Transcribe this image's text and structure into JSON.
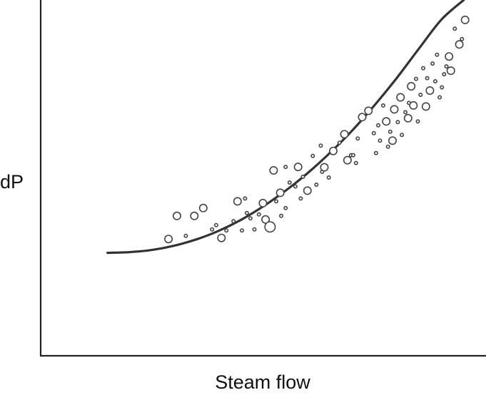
{
  "chart_data": {
    "type": "scatter",
    "xlabel": "Steam flow",
    "ylabel": "dP",
    "ticks": "none",
    "grid": false,
    "legend": "none",
    "xlim": [
      0,
      100
    ],
    "ylim": [
      0,
      100
    ],
    "fit_curve": {
      "shape": "quadratic",
      "x": [
        15,
        20,
        25,
        30,
        35,
        40,
        45,
        50,
        55,
        60,
        65,
        70,
        75,
        80,
        85,
        90,
        95
      ],
      "y": [
        28.8,
        29.0,
        29.6,
        30.8,
        32.6,
        35.0,
        38.1,
        41.9,
        46.3,
        51.3,
        57.0,
        63.3,
        70.4,
        78.1,
        86.4,
        94.5,
        100
      ]
    },
    "points": [
      {
        "x": 28.7,
        "y": 32.7,
        "size": "medium"
      },
      {
        "x": 30.6,
        "y": 39.2,
        "size": "medium"
      },
      {
        "x": 32.6,
        "y": 33.6,
        "size": "small"
      },
      {
        "x": 34.5,
        "y": 39.2,
        "size": "medium"
      },
      {
        "x": 36.5,
        "y": 41.4,
        "size": "medium"
      },
      {
        "x": 38.5,
        "y": 35.4,
        "size": "small"
      },
      {
        "x": 39.4,
        "y": 36.6,
        "size": "small"
      },
      {
        "x": 40.6,
        "y": 33.0,
        "size": "medium"
      },
      {
        "x": 41.7,
        "y": 35.1,
        "size": "small"
      },
      {
        "x": 43.3,
        "y": 37.7,
        "size": "small"
      },
      {
        "x": 44.2,
        "y": 43.3,
        "size": "medium"
      },
      {
        "x": 45.2,
        "y": 35.1,
        "size": "small"
      },
      {
        "x": 45.9,
        "y": 44.1,
        "size": "small"
      },
      {
        "x": 46.3,
        "y": 40.0,
        "size": "small"
      },
      {
        "x": 47.1,
        "y": 38.5,
        "size": "small"
      },
      {
        "x": 48.0,
        "y": 35.4,
        "size": "small"
      },
      {
        "x": 49.0,
        "y": 39.6,
        "size": "small"
      },
      {
        "x": 49.9,
        "y": 42.8,
        "size": "medium"
      },
      {
        "x": 50.5,
        "y": 38.2,
        "size": "medium"
      },
      {
        "x": 51.5,
        "y": 36.1,
        "size": "large"
      },
      {
        "x": 52.3,
        "y": 52.0,
        "size": "medium"
      },
      {
        "x": 52.9,
        "y": 43.3,
        "size": "small"
      },
      {
        "x": 53.8,
        "y": 45.7,
        "size": "medium"
      },
      {
        "x": 54.0,
        "y": 39.2,
        "size": "small"
      },
      {
        "x": 55.0,
        "y": 53.0,
        "size": "small"
      },
      {
        "x": 55.0,
        "y": 41.4,
        "size": "small"
      },
      {
        "x": 55.9,
        "y": 48.6,
        "size": "small"
      },
      {
        "x": 57.2,
        "y": 47.5,
        "size": "small"
      },
      {
        "x": 57.8,
        "y": 53.0,
        "size": "medium"
      },
      {
        "x": 58.4,
        "y": 44.1,
        "size": "small"
      },
      {
        "x": 58.9,
        "y": 50.2,
        "size": "small"
      },
      {
        "x": 59.9,
        "y": 46.3,
        "size": "medium"
      },
      {
        "x": 61.1,
        "y": 56.1,
        "size": "small"
      },
      {
        "x": 61.9,
        "y": 48.0,
        "size": "small"
      },
      {
        "x": 62.9,
        "y": 59.0,
        "size": "small"
      },
      {
        "x": 63.2,
        "y": 51.6,
        "size": "small"
      },
      {
        "x": 63.7,
        "y": 52.9,
        "size": "medium"
      },
      {
        "x": 64.7,
        "y": 50.0,
        "size": "small"
      },
      {
        "x": 65.7,
        "y": 57.5,
        "size": "medium"
      },
      {
        "x": 67.1,
        "y": 59.8,
        "size": "small"
      },
      {
        "x": 68.2,
        "y": 62.2,
        "size": "medium"
      },
      {
        "x": 68.9,
        "y": 54.9,
        "size": "medium"
      },
      {
        "x": 69.7,
        "y": 56.3,
        "size": "small"
      },
      {
        "x": 70.2,
        "y": 56.3,
        "size": "small"
      },
      {
        "x": 70.8,
        "y": 54.1,
        "size": "small"
      },
      {
        "x": 71.2,
        "y": 61.0,
        "size": "small"
      },
      {
        "x": 72.2,
        "y": 67.0,
        "size": "medium"
      },
      {
        "x": 73.6,
        "y": 68.8,
        "size": "medium"
      },
      {
        "x": 74.8,
        "y": 62.5,
        "size": "small"
      },
      {
        "x": 75.3,
        "y": 56.9,
        "size": "small"
      },
      {
        "x": 75.8,
        "y": 64.7,
        "size": "small"
      },
      {
        "x": 76.2,
        "y": 60.4,
        "size": "small"
      },
      {
        "x": 76.9,
        "y": 70.3,
        "size": "small"
      },
      {
        "x": 77.6,
        "y": 65.8,
        "size": "medium"
      },
      {
        "x": 78.0,
        "y": 58.7,
        "size": "small"
      },
      {
        "x": 78.5,
        "y": 62.9,
        "size": "small"
      },
      {
        "x": 79.0,
        "y": 60.4,
        "size": "medium"
      },
      {
        "x": 79.4,
        "y": 69.2,
        "size": "medium"
      },
      {
        "x": 80.2,
        "y": 65.6,
        "size": "small"
      },
      {
        "x": 80.8,
        "y": 72.6,
        "size": "medium"
      },
      {
        "x": 81.1,
        "y": 62.0,
        "size": "small"
      },
      {
        "x": 81.9,
        "y": 68.4,
        "size": "small"
      },
      {
        "x": 82.5,
        "y": 66.7,
        "size": "medium"
      },
      {
        "x": 82.7,
        "y": 71.0,
        "size": "small"
      },
      {
        "x": 83.2,
        "y": 75.7,
        "size": "medium"
      },
      {
        "x": 83.7,
        "y": 70.3,
        "size": "medium"
      },
      {
        "x": 84.3,
        "y": 77.8,
        "size": "small"
      },
      {
        "x": 84.7,
        "y": 65.8,
        "size": "small"
      },
      {
        "x": 85.3,
        "y": 73.3,
        "size": "small"
      },
      {
        "x": 85.9,
        "y": 80.8,
        "size": "small"
      },
      {
        "x": 86.5,
        "y": 70.0,
        "size": "medium"
      },
      {
        "x": 86.8,
        "y": 78.0,
        "size": "small"
      },
      {
        "x": 87.4,
        "y": 74.5,
        "size": "medium"
      },
      {
        "x": 88.0,
        "y": 82.1,
        "size": "small"
      },
      {
        "x": 88.6,
        "y": 77.1,
        "size": "small"
      },
      {
        "x": 89.0,
        "y": 84.6,
        "size": "small"
      },
      {
        "x": 89.6,
        "y": 72.6,
        "size": "small"
      },
      {
        "x": 90.1,
        "y": 75.4,
        "size": "small"
      },
      {
        "x": 90.6,
        "y": 79.1,
        "size": "small"
      },
      {
        "x": 91.1,
        "y": 81.3,
        "size": "small"
      },
      {
        "x": 91.7,
        "y": 84.1,
        "size": "medium"
      },
      {
        "x": 92.1,
        "y": 80.1,
        "size": "medium"
      },
      {
        "x": 93.0,
        "y": 91.9,
        "size": "small"
      },
      {
        "x": 94.0,
        "y": 87.5,
        "size": "medium"
      },
      {
        "x": 94.6,
        "y": 89.0,
        "size": "small"
      },
      {
        "x": 95.3,
        "y": 94.4,
        "size": "medium"
      }
    ]
  }
}
